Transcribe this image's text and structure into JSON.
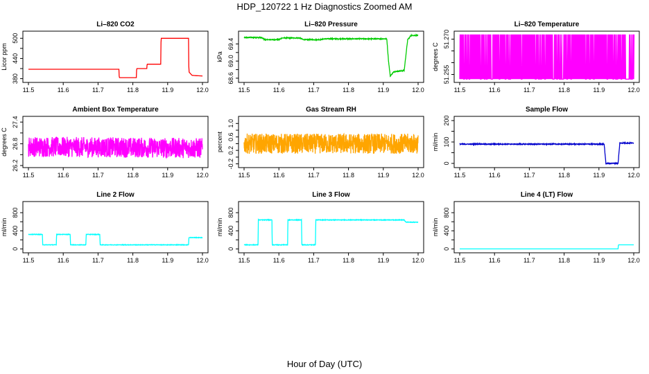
{
  "page": {
    "title": "HDP_120722  1 Hz Diagnostics Zoomed AM",
    "xlabel": "Hour of Day (UTC)"
  },
  "chart_data": [
    {
      "type": "line",
      "title": "Li–820 CO2",
      "ylabel": "Licor ppm",
      "color": "#ff0000",
      "xlim": [
        11.5,
        12.0
      ],
      "ylim": [
        375,
        515
      ],
      "xticks": [
        "11.5",
        "11.6",
        "11.7",
        "11.8",
        "11.9",
        "12.0"
      ],
      "yticks": [
        380,
        440,
        500
      ],
      "y_text_ticks": [
        "380",
        "440",
        "500"
      ],
      "y_minor_ticks": [
        410,
        470
      ],
      "noise": 0,
      "x": [
        11.5,
        11.76,
        11.761,
        11.81,
        11.811,
        11.84,
        11.841,
        11.88,
        11.881,
        11.96,
        11.961,
        11.97,
        11.98,
        12.0
      ],
      "y": [
        408,
        408,
        383,
        383,
        410,
        410,
        423,
        423,
        500,
        500,
        400,
        390,
        389,
        388
      ]
    },
    {
      "type": "line",
      "title": "Li–820 Pressure",
      "ylabel": "kPa",
      "color": "#00cc00",
      "xlim": [
        11.5,
        12.0
      ],
      "ylim": [
        68.55,
        69.65
      ],
      "xticks": [
        "11.5",
        "11.6",
        "11.7",
        "11.8",
        "11.9",
        "12.0"
      ],
      "yticks": [
        68.6,
        69.0,
        69.4
      ],
      "y_text_ticks": [
        "68.6",
        "69.0",
        "69.4"
      ],
      "y_minor_ticks": [
        68.8,
        69.2
      ],
      "noise": 0.01,
      "x": [
        11.5,
        11.55,
        11.56,
        11.6,
        11.61,
        11.66,
        11.67,
        11.72,
        11.73,
        11.91,
        11.915,
        11.92,
        11.93,
        11.96,
        11.97,
        11.98,
        12.0
      ],
      "y": [
        69.55,
        69.55,
        69.5,
        69.5,
        69.54,
        69.54,
        69.5,
        69.5,
        69.52,
        69.52,
        69.0,
        68.65,
        68.75,
        68.78,
        69.5,
        69.6,
        69.6
      ]
    },
    {
      "type": "line",
      "title": "Li–820 Temperature",
      "ylabel": "degrees C",
      "color": "#ff00ff",
      "xlim": [
        11.5,
        12.0
      ],
      "ylim": [
        51.2525,
        51.2725
      ],
      "xticks": [
        "11.5",
        "11.6",
        "11.7",
        "11.8",
        "11.9",
        "12.0"
      ],
      "yticks": [
        51.255,
        51.26,
        51.265,
        51.27
      ],
      "y_text_ticks": [
        "51.255",
        "51.270"
      ],
      "y_minor_ticks": [],
      "noise": 0,
      "alternating": true,
      "x": [
        11.5,
        12.0
      ],
      "y": [
        51.253,
        51.272
      ]
    },
    {
      "type": "line",
      "title": "Ambient Box Temperature",
      "ylabel": "degrees C",
      "color": "#ff00ff",
      "xlim": [
        11.5,
        12.0
      ],
      "ylim": [
        26.2,
        27.5
      ],
      "xticks": [
        "11.5",
        "11.6",
        "11.7",
        "11.8",
        "11.9",
        "12.0"
      ],
      "yticks": [
        26.2,
        26.8,
        27.4
      ],
      "y_text_ticks": [
        "26.2",
        "26.8",
        "27.4"
      ],
      "y_minor_ticks": [
        26.5,
        27.1
      ],
      "noise": 0.28,
      "x": [
        11.5,
        12.0
      ],
      "y": [
        26.72,
        26.68
      ]
    },
    {
      "type": "line",
      "title": "Gas Stream RH",
      "ylabel": "percent",
      "color": "#ffa500",
      "xlim": [
        11.5,
        12.0
      ],
      "ylim": [
        -0.25,
        1.15
      ],
      "xticks": [
        "11.5",
        "11.6",
        "11.7",
        "11.8",
        "11.9",
        "12.0"
      ],
      "yticks": [
        -0.2,
        0.2,
        0.6,
        1.0
      ],
      "y_text_ticks": [
        "-0.2",
        "0.2",
        "0.6",
        "1.0"
      ],
      "y_minor_ticks": [
        0.0,
        0.4,
        0.8
      ],
      "noise": 0.3,
      "x": [
        11.5,
        12.0
      ],
      "y": [
        0.4,
        0.4
      ]
    },
    {
      "type": "line",
      "title": "Sample Flow",
      "ylabel": "ml/min",
      "color": "#0000cc",
      "xlim": [
        11.5,
        12.0
      ],
      "ylim": [
        -10,
        210
      ],
      "xticks": [
        "11.5",
        "11.6",
        "11.7",
        "11.8",
        "11.9",
        "12.0"
      ],
      "yticks": [
        0,
        100,
        200
      ],
      "y_text_ticks": [
        "0",
        "100",
        "200"
      ],
      "y_minor_ticks": [
        50,
        150
      ],
      "noise": 2,
      "x": [
        11.5,
        11.915,
        11.92,
        11.955,
        11.96,
        12.0
      ],
      "y": [
        90,
        90,
        0,
        0,
        95,
        95
      ]
    },
    {
      "type": "line",
      "title": "Line 2 Flow",
      "ylabel": "ml/min",
      "color": "#00ffff",
      "xlim": [
        11.5,
        12.0
      ],
      "ylim": [
        -40,
        1000
      ],
      "xticks": [
        "11.5",
        "11.6",
        "11.7",
        "11.8",
        "11.9",
        "12.0"
      ],
      "yticks": [
        0,
        400,
        800
      ],
      "y_text_ticks": [
        "0",
        "400",
        "800"
      ],
      "y_minor_ticks": [
        200,
        600
      ],
      "noise": 5,
      "x": [
        11.5,
        11.54,
        11.541,
        11.58,
        11.581,
        11.62,
        11.621,
        11.665,
        11.666,
        11.705,
        11.706,
        11.96,
        11.961,
        12.0
      ],
      "y": [
        320,
        320,
        90,
        90,
        320,
        320,
        90,
        90,
        320,
        320,
        90,
        90,
        250,
        250
      ]
    },
    {
      "type": "line",
      "title": "Line 3 Flow",
      "ylabel": "ml/min",
      "color": "#00ffff",
      "xlim": [
        11.5,
        12.0
      ],
      "ylim": [
        -40,
        1000
      ],
      "xticks": [
        "11.5",
        "11.6",
        "11.7",
        "11.8",
        "11.9",
        "12.0"
      ],
      "yticks": [
        0,
        400,
        800
      ],
      "y_text_ticks": [
        "0",
        "400",
        "800"
      ],
      "y_minor_ticks": [
        200,
        600
      ],
      "noise": 6,
      "x": [
        11.5,
        11.54,
        11.541,
        11.58,
        11.581,
        11.625,
        11.626,
        11.665,
        11.666,
        11.705,
        11.706,
        11.96,
        11.965,
        12.0
      ],
      "y": [
        90,
        90,
        640,
        640,
        90,
        90,
        640,
        640,
        90,
        90,
        640,
        640,
        590,
        590
      ]
    },
    {
      "type": "line",
      "title": "Line 4 (LT) Flow",
      "ylabel": "ml/min",
      "color": "#00ffff",
      "xlim": [
        11.5,
        12.0
      ],
      "ylim": [
        -40,
        1000
      ],
      "xticks": [
        "11.5",
        "11.6",
        "11.7",
        "11.8",
        "11.9",
        "12.0"
      ],
      "yticks": [
        0,
        400,
        800
      ],
      "y_text_ticks": [
        "0",
        "400",
        "800"
      ],
      "y_minor_ticks": [
        200,
        600
      ],
      "noise": 0,
      "x": [
        11.5,
        11.955,
        11.956,
        12.0
      ],
      "y": [
        0,
        0,
        90,
        90
      ]
    }
  ]
}
